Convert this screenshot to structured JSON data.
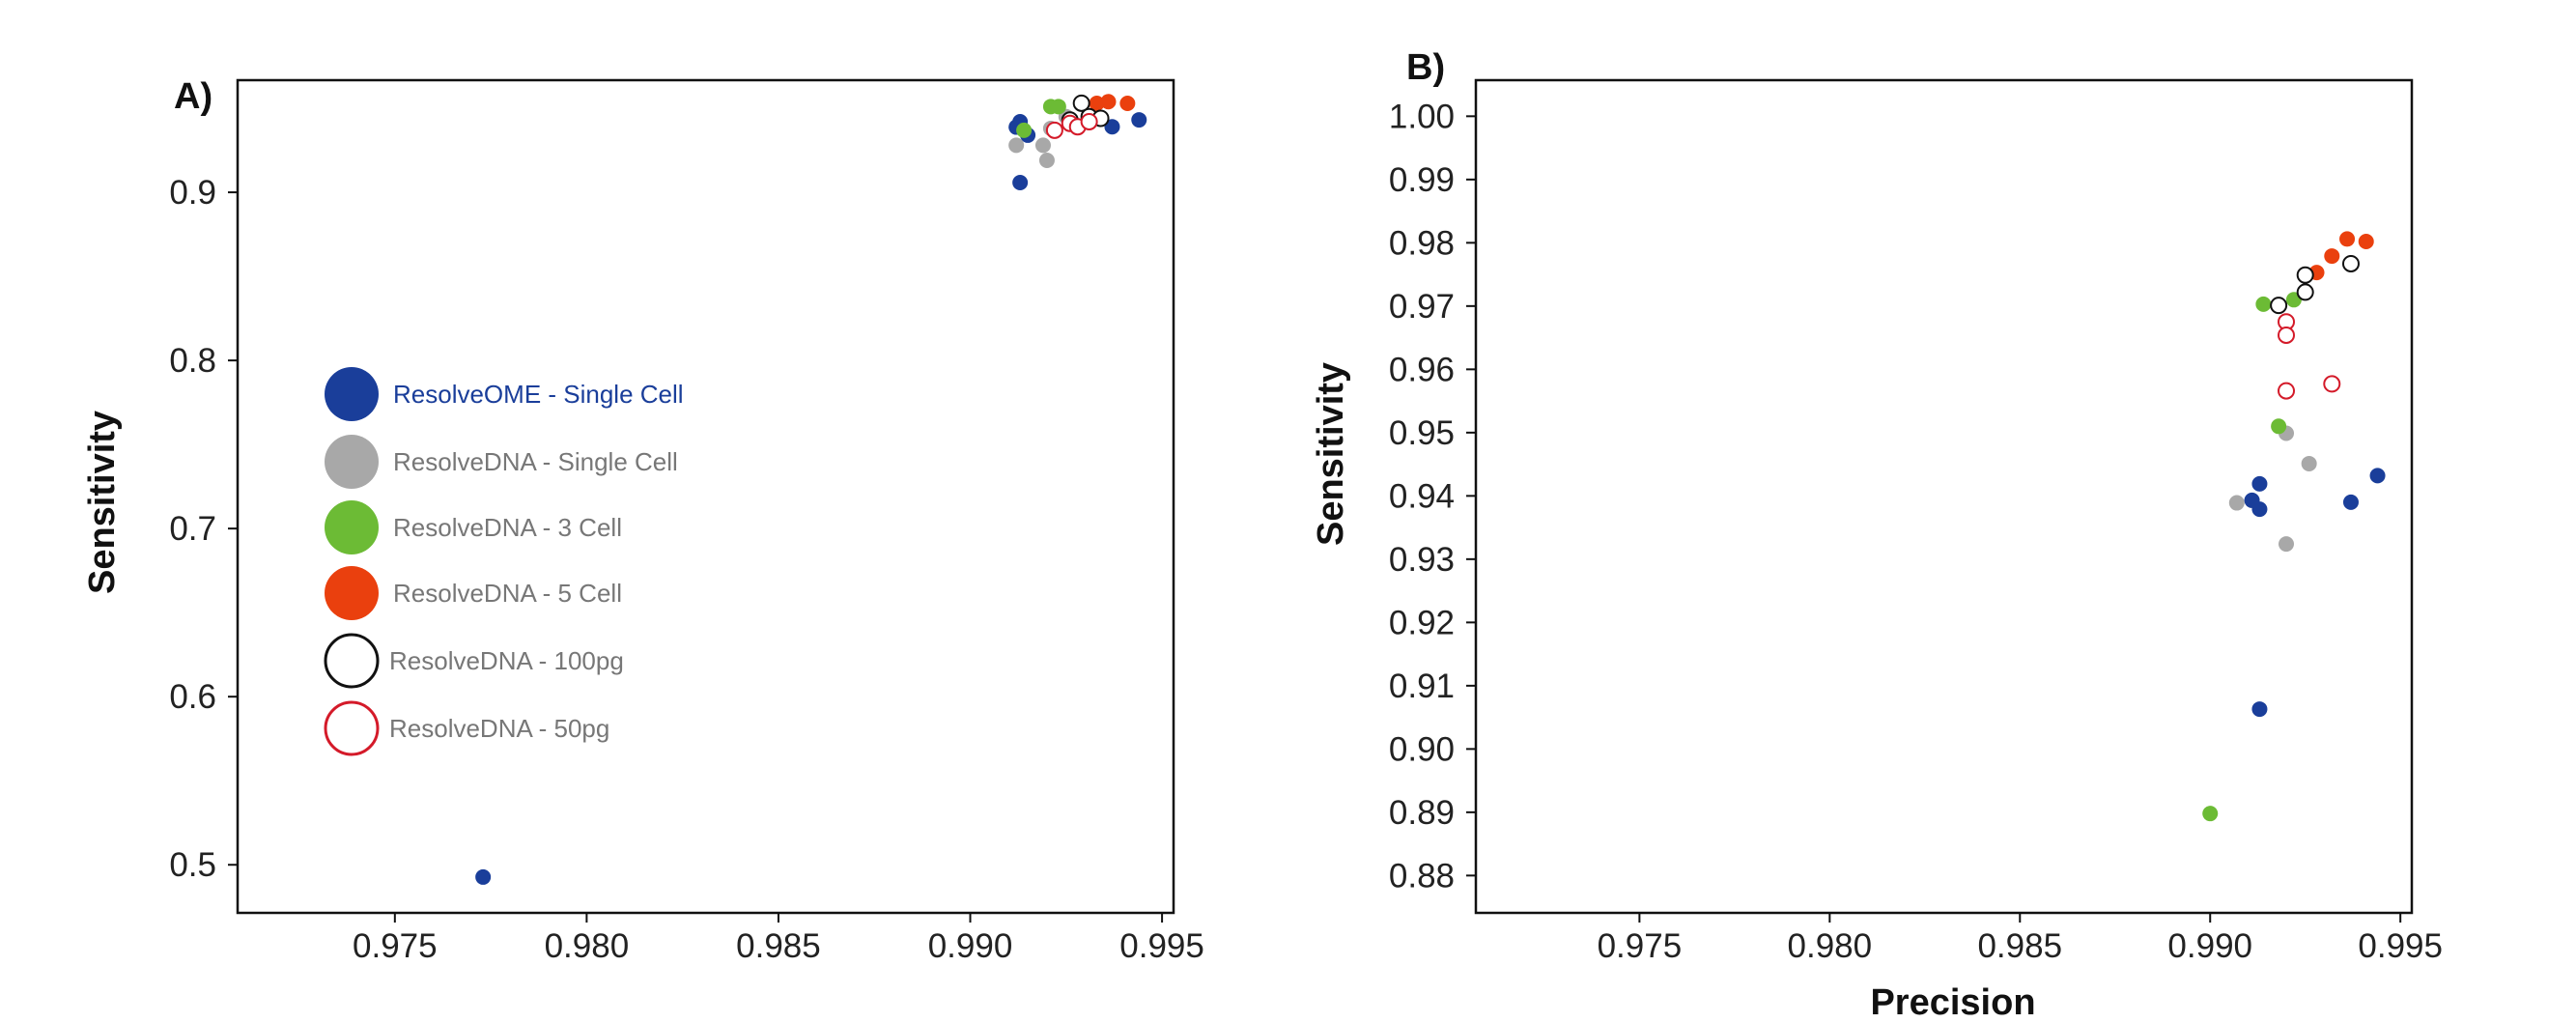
{
  "colors": {
    "resolveome": "#1a3e9a",
    "resolvedna_single": "#a8a8a8",
    "resolvedna_3cell": "#6cbb35",
    "resolvedna_5cell": "#ea400e",
    "resolvedna_100pg": "#111111",
    "resolvedna_50pg": "#d41a29"
  },
  "chart_data": [
    {
      "type": "scatter",
      "panel_label": "A)",
      "xlabel": "",
      "ylabel": "Sensitivity",
      "xlim": [
        0.9709,
        0.9953
      ],
      "ylim": [
        0.4714,
        0.9667
      ],
      "xticks": [
        0.975,
        0.98,
        0.985,
        0.99,
        0.995
      ],
      "xtick_labels": [
        "0.975",
        "0.980",
        "0.985",
        "0.990",
        "0.995"
      ],
      "yticks": [
        0.5,
        0.6,
        0.7,
        0.8,
        0.9
      ],
      "ytick_labels": [
        "0.5",
        "0.6",
        "0.7",
        "0.8",
        "0.9"
      ],
      "grid": false,
      "legend_position": "left",
      "series": [
        {
          "name": "ResolveOME - Single Cell",
          "key": "resolveome",
          "marker": "filled",
          "points": [
            [
              0.9773,
              0.4927
            ],
            [
              0.9913,
              0.9058
            ],
            [
              0.9915,
              0.934
            ],
            [
              0.9913,
              0.942
            ],
            [
              0.9912,
              0.9388
            ],
            [
              0.9937,
              0.939
            ],
            [
              0.9944,
              0.9431
            ]
          ]
        },
        {
          "name": "ResolveDNA - Single Cell",
          "key": "resolvedna_single",
          "marker": "filled",
          "points": [
            [
              0.9912,
              0.928
            ],
            [
              0.9919,
              0.928
            ],
            [
              0.992,
              0.919
            ],
            [
              0.9921,
              0.938
            ],
            [
              0.9925,
              0.945
            ]
          ]
        },
        {
          "name": "ResolveDNA - 3 Cell",
          "key": "resolvedna_3cell",
          "marker": "filled",
          "points": [
            [
              0.9914,
              0.9369
            ],
            [
              0.9921,
              0.951
            ],
            [
              0.9923,
              0.951
            ]
          ]
        },
        {
          "name": "ResolveDNA - 5 Cell",
          "key": "resolvedna_5cell",
          "marker": "filled",
          "points": [
            [
              0.9933,
              0.9529
            ],
            [
              0.9936,
              0.9539
            ],
            [
              0.9941,
              0.9529
            ]
          ]
        },
        {
          "name": "ResolveDNA - 100pg",
          "key": "resolvedna_100pg",
          "marker": "open",
          "points": [
            [
              0.9926,
              0.943
            ],
            [
              0.9929,
              0.953
            ],
            [
              0.9931,
              0.945
            ],
            [
              0.9934,
              0.944
            ]
          ]
        },
        {
          "name": "ResolveDNA - 50pg",
          "key": "resolvedna_50pg",
          "marker": "open",
          "points": [
            [
              0.9922,
              0.9369
            ],
            [
              0.9926,
              0.941
            ],
            [
              0.9928,
              0.939
            ],
            [
              0.9931,
              0.942
            ]
          ]
        }
      ]
    },
    {
      "type": "scatter",
      "panel_label": "B)",
      "xlabel": "Precision",
      "ylabel": "Sensitivity",
      "xlim": [
        0.9707,
        0.9953
      ],
      "ylim": [
        0.8741,
        1.0057
      ],
      "xticks": [
        0.975,
        0.98,
        0.985,
        0.99,
        0.995
      ],
      "xtick_labels": [
        "0.975",
        "0.980",
        "0.985",
        "0.990",
        "0.995"
      ],
      "yticks": [
        0.88,
        0.89,
        0.9,
        0.91,
        0.92,
        0.93,
        0.94,
        0.95,
        0.96,
        0.97,
        0.98,
        0.99,
        1.0
      ],
      "ytick_labels": [
        "0.88",
        "0.89",
        "0.90",
        "0.91",
        "0.92",
        "0.93",
        "0.94",
        "0.95",
        "0.96",
        "0.97",
        "0.98",
        "0.99",
        "1.00"
      ],
      "grid": false,
      "series": [
        {
          "name": "ResolveOME - Single Cell",
          "key": "resolveome",
          "marker": "filled",
          "points": [
            [
              0.9913,
              0.9063
            ],
            [
              0.9913,
              0.9419
            ],
            [
              0.9911,
              0.9393
            ],
            [
              0.9913,
              0.9379
            ],
            [
              0.9937,
              0.939
            ],
            [
              0.9944,
              0.9432
            ]
          ]
        },
        {
          "name": "ResolveDNA - Single Cell",
          "key": "resolvedna_single",
          "marker": "filled",
          "points": [
            [
              0.9907,
              0.9389
            ],
            [
              0.992,
              0.9324
            ],
            [
              0.992,
              0.9499
            ],
            [
              0.9926,
              0.9451
            ]
          ]
        },
        {
          "name": "ResolveDNA - 3 Cell",
          "key": "resolvedna_3cell",
          "marker": "filled",
          "points": [
            [
              0.99,
              0.8898
            ],
            [
              0.9918,
              0.951
            ],
            [
              0.9914,
              0.9703
            ],
            [
              0.9922,
              0.971
            ]
          ]
        },
        {
          "name": "ResolveDNA - 5 Cell",
          "key": "resolvedna_5cell",
          "marker": "filled",
          "points": [
            [
              0.9928,
              0.9753
            ],
            [
              0.9932,
              0.9779
            ],
            [
              0.9936,
              0.9806
            ],
            [
              0.9941,
              0.9802
            ]
          ]
        },
        {
          "name": "ResolveDNA - 100pg",
          "key": "resolvedna_100pg",
          "marker": "open",
          "points": [
            [
              0.9918,
              0.9701
            ],
            [
              0.9925,
              0.9722
            ],
            [
              0.9925,
              0.9749
            ],
            [
              0.9937,
              0.9767
            ]
          ]
        },
        {
          "name": "ResolveDNA - 50pg",
          "key": "resolvedna_50pg",
          "marker": "open",
          "points": [
            [
              0.992,
              0.9675
            ],
            [
              0.992,
              0.9654
            ],
            [
              0.992,
              0.9566
            ],
            [
              0.9932,
              0.9577
            ]
          ]
        }
      ]
    }
  ]
}
